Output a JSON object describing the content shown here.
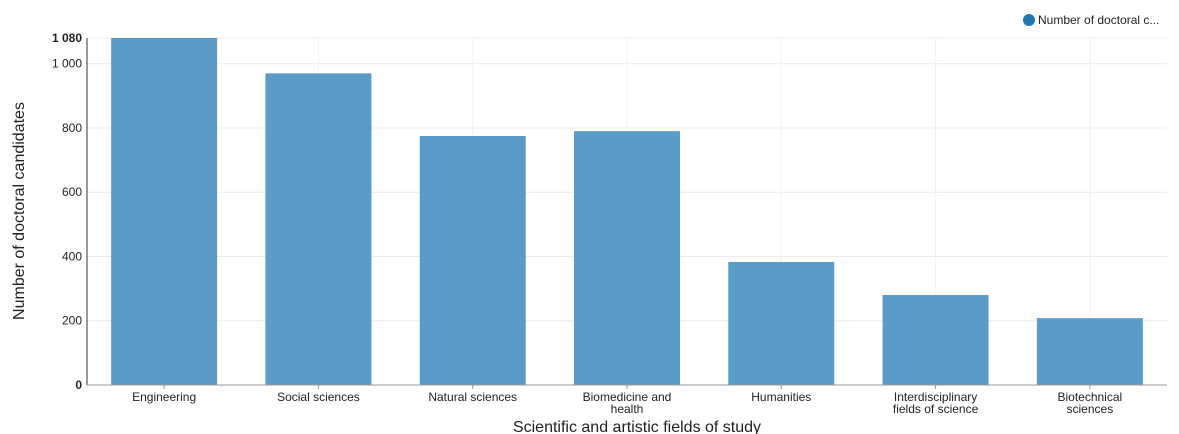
{
  "legend": {
    "label": "Number of doctoral c..."
  },
  "chart_data": {
    "type": "bar",
    "categories": [
      [
        "Engineering"
      ],
      [
        "Social sciences"
      ],
      [
        "Natural sciences"
      ],
      [
        "Biomedicine and",
        "health"
      ],
      [
        "Humanities"
      ],
      [
        "Interdisciplinary",
        "fields of science"
      ],
      [
        "Biotechnical",
        "sciences"
      ]
    ],
    "series": [
      {
        "name": "Number of doctoral c...",
        "values": [
          1080,
          970,
          775,
          790,
          383,
          280,
          208
        ],
        "color": "#5b9bc8"
      }
    ],
    "xlabel": "Scientific and artistic fields of study",
    "ylabel": "Number of doctoral candidates",
    "ylim": [
      0,
      1080
    ],
    "yticks": [
      {
        "value": 0,
        "label": "0",
        "bold": true
      },
      {
        "value": 200,
        "label": "200",
        "bold": false
      },
      {
        "value": 400,
        "label": "400",
        "bold": false
      },
      {
        "value": 600,
        "label": "600",
        "bold": false
      },
      {
        "value": 800,
        "label": "800",
        "bold": false
      },
      {
        "value": 1000,
        "label": "1 000",
        "bold": false
      },
      {
        "value": 1080,
        "label": "1 080",
        "bold": true
      }
    ],
    "grid": true,
    "legend_position": "top-right",
    "legend_marker_color": "#1f77b4"
  }
}
